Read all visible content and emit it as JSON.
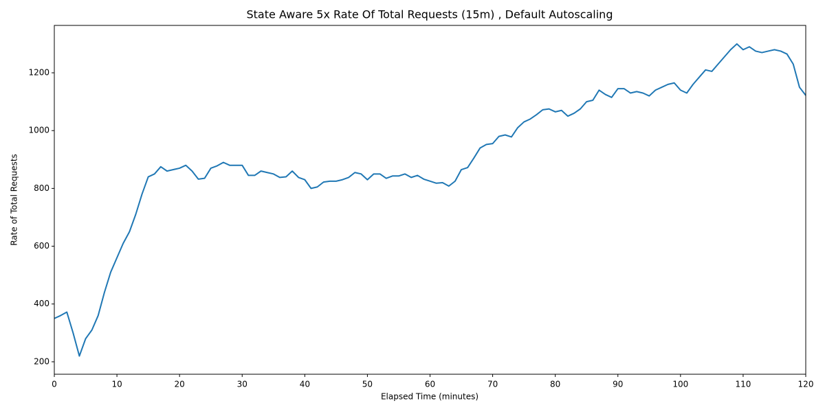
{
  "chart_data": {
    "type": "line",
    "title": "State Aware 5x Rate Of Total Requests (15m) , Default Autoscaling",
    "xlabel": "Elapsed Time (minutes)",
    "ylabel": "Rate of Total Requests",
    "x": [
      0,
      1,
      2,
      3,
      4,
      5,
      6,
      7,
      8,
      9,
      10,
      11,
      12,
      13,
      14,
      15,
      16,
      17,
      18,
      19,
      20,
      21,
      22,
      23,
      24,
      25,
      26,
      27,
      28,
      29,
      30,
      31,
      32,
      33,
      34,
      35,
      36,
      37,
      38,
      39,
      40,
      41,
      42,
      43,
      44,
      45,
      46,
      47,
      48,
      49,
      50,
      51,
      52,
      53,
      54,
      55,
      56,
      57,
      58,
      59,
      60,
      61,
      62,
      63,
      64,
      65,
      66,
      67,
      68,
      69,
      70,
      71,
      72,
      73,
      74,
      75,
      76,
      77,
      78,
      79,
      80,
      81,
      82,
      83,
      84,
      85,
      86,
      87,
      88,
      89,
      90,
      91,
      92,
      93,
      94,
      95,
      96,
      97,
      98,
      99,
      100,
      101,
      102,
      103,
      104,
      105,
      106,
      107,
      108,
      109,
      110,
      111,
      112,
      113,
      114,
      115,
      116,
      117,
      118,
      119,
      120
    ],
    "series": [
      {
        "name": "Rate of Total Requests",
        "color": "#1f77b4",
        "values": [
          350,
          360,
          372,
          300,
          220,
          280,
          310,
          360,
          440,
          510,
          560,
          610,
          650,
          710,
          780,
          840,
          850,
          875,
          860,
          865,
          870,
          880,
          860,
          832,
          835,
          870,
          878,
          890,
          880,
          880,
          880,
          845,
          845,
          860,
          855,
          850,
          838,
          840,
          860,
          838,
          830,
          800,
          805,
          822,
          825,
          825,
          830,
          838,
          855,
          850,
          830,
          850,
          850,
          835,
          843,
          843,
          850,
          838,
          845,
          832,
          825,
          818,
          820,
          808,
          825,
          865,
          872,
          905,
          940,
          952,
          955,
          980,
          985,
          978,
          1010,
          1030,
          1040,
          1055,
          1072,
          1075,
          1065,
          1070,
          1050,
          1060,
          1075,
          1100,
          1105,
          1140,
          1125,
          1115,
          1145,
          1145,
          1130,
          1135,
          1130,
          1120,
          1140,
          1150,
          1160,
          1165,
          1140,
          1130,
          1160,
          1185,
          1210,
          1205,
          1230,
          1255,
          1280,
          1300,
          1280,
          1290,
          1275,
          1270,
          1275,
          1280,
          1275,
          1265,
          1230,
          1150,
          1122
        ]
      }
    ],
    "xlim": [
      0,
      120
    ],
    "xticks": [
      0,
      10,
      20,
      30,
      40,
      50,
      60,
      70,
      80,
      90,
      100,
      110,
      120
    ],
    "ylim": [
      157,
      1364
    ],
    "yticks": [
      200,
      400,
      600,
      800,
      1000,
      1200
    ]
  }
}
